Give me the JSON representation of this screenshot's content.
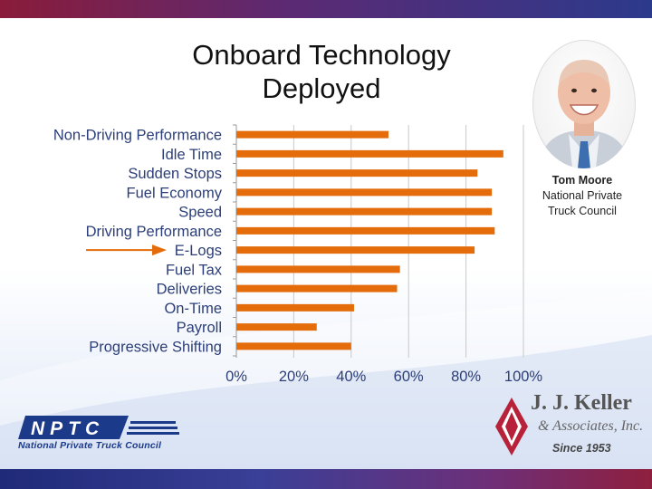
{
  "slide": {
    "title_line1": "Onboard Technology",
    "title_line2": "Deployed"
  },
  "presenter": {
    "name": "Tom Moore",
    "org_line1": "National Private",
    "org_line2": "Truck Council"
  },
  "logos": {
    "nptc_text": "NPTC",
    "nptc_caption": "National Private Truck Council",
    "keller_name": "J. J. Keller",
    "keller_sub": "& Associates, Inc.",
    "keller_since": "Since 1953"
  },
  "colors": {
    "bar": "#e46c0a",
    "arrow": "#e46c0a",
    "label": "#2c3e78",
    "grid": "#c8c8c8"
  },
  "chart_data": {
    "type": "bar",
    "orientation": "horizontal",
    "categories": [
      "Non-Driving Performance",
      "Idle Time",
      "Sudden Stops",
      "Fuel Economy",
      "Speed",
      "Driving Performance",
      "E-Logs",
      "Fuel Tax",
      "Deliveries",
      "On-Time",
      "Payroll",
      "Progressive Shifting"
    ],
    "values": [
      53,
      93,
      84,
      89,
      89,
      90,
      83,
      57,
      56,
      41,
      28,
      40
    ],
    "unit": "%",
    "xlim": [
      0,
      100
    ],
    "xticks": [
      0,
      20,
      40,
      60,
      80,
      100
    ],
    "xtick_labels": [
      "0%",
      "20%",
      "40%",
      "60%",
      "80%",
      "100%"
    ],
    "grid": true,
    "highlight_category": "E-Logs",
    "legend": "none"
  }
}
